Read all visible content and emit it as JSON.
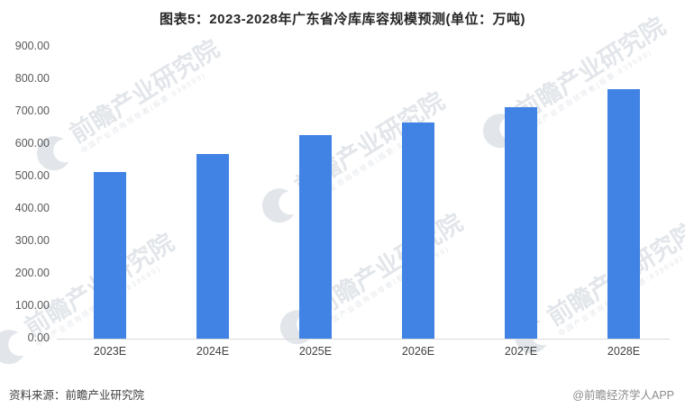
{
  "title": "图表5：2023-2028年广东省冷库库容规模预测(单位：万吨)",
  "footer": {
    "source": "资料来源：前瞻产业研究院",
    "credit": "@前瞻经济学人APP"
  },
  "watermark": {
    "text": "前瞻产业研究院",
    "subtext": "中国产业咨询领导者(股票:839599)"
  },
  "colors": {
    "bar": "#4183E4",
    "axis_line": "#D9D9D9",
    "title_text": "#262626",
    "tick_text": "#595959"
  },
  "chart_data": {
    "type": "bar",
    "title": "图表5：2023-2028年广东省冷库库容规模预测(单位：万吨)",
    "categories": [
      "2023E",
      "2024E",
      "2025E",
      "2026E",
      "2027E",
      "2028E"
    ],
    "values": [
      515,
      570,
      627,
      667,
      714,
      770
    ],
    "xlabel": "",
    "ylabel": "",
    "unit": "万吨",
    "ylim": [
      0,
      900
    ],
    "ytick_step": 100,
    "ytick_labels": [
      "0.00",
      "100.00",
      "200.00",
      "300.00",
      "400.00",
      "500.00",
      "600.00",
      "700.00",
      "800.00",
      "900.00"
    ],
    "grid": false,
    "legend_position": "none"
  }
}
